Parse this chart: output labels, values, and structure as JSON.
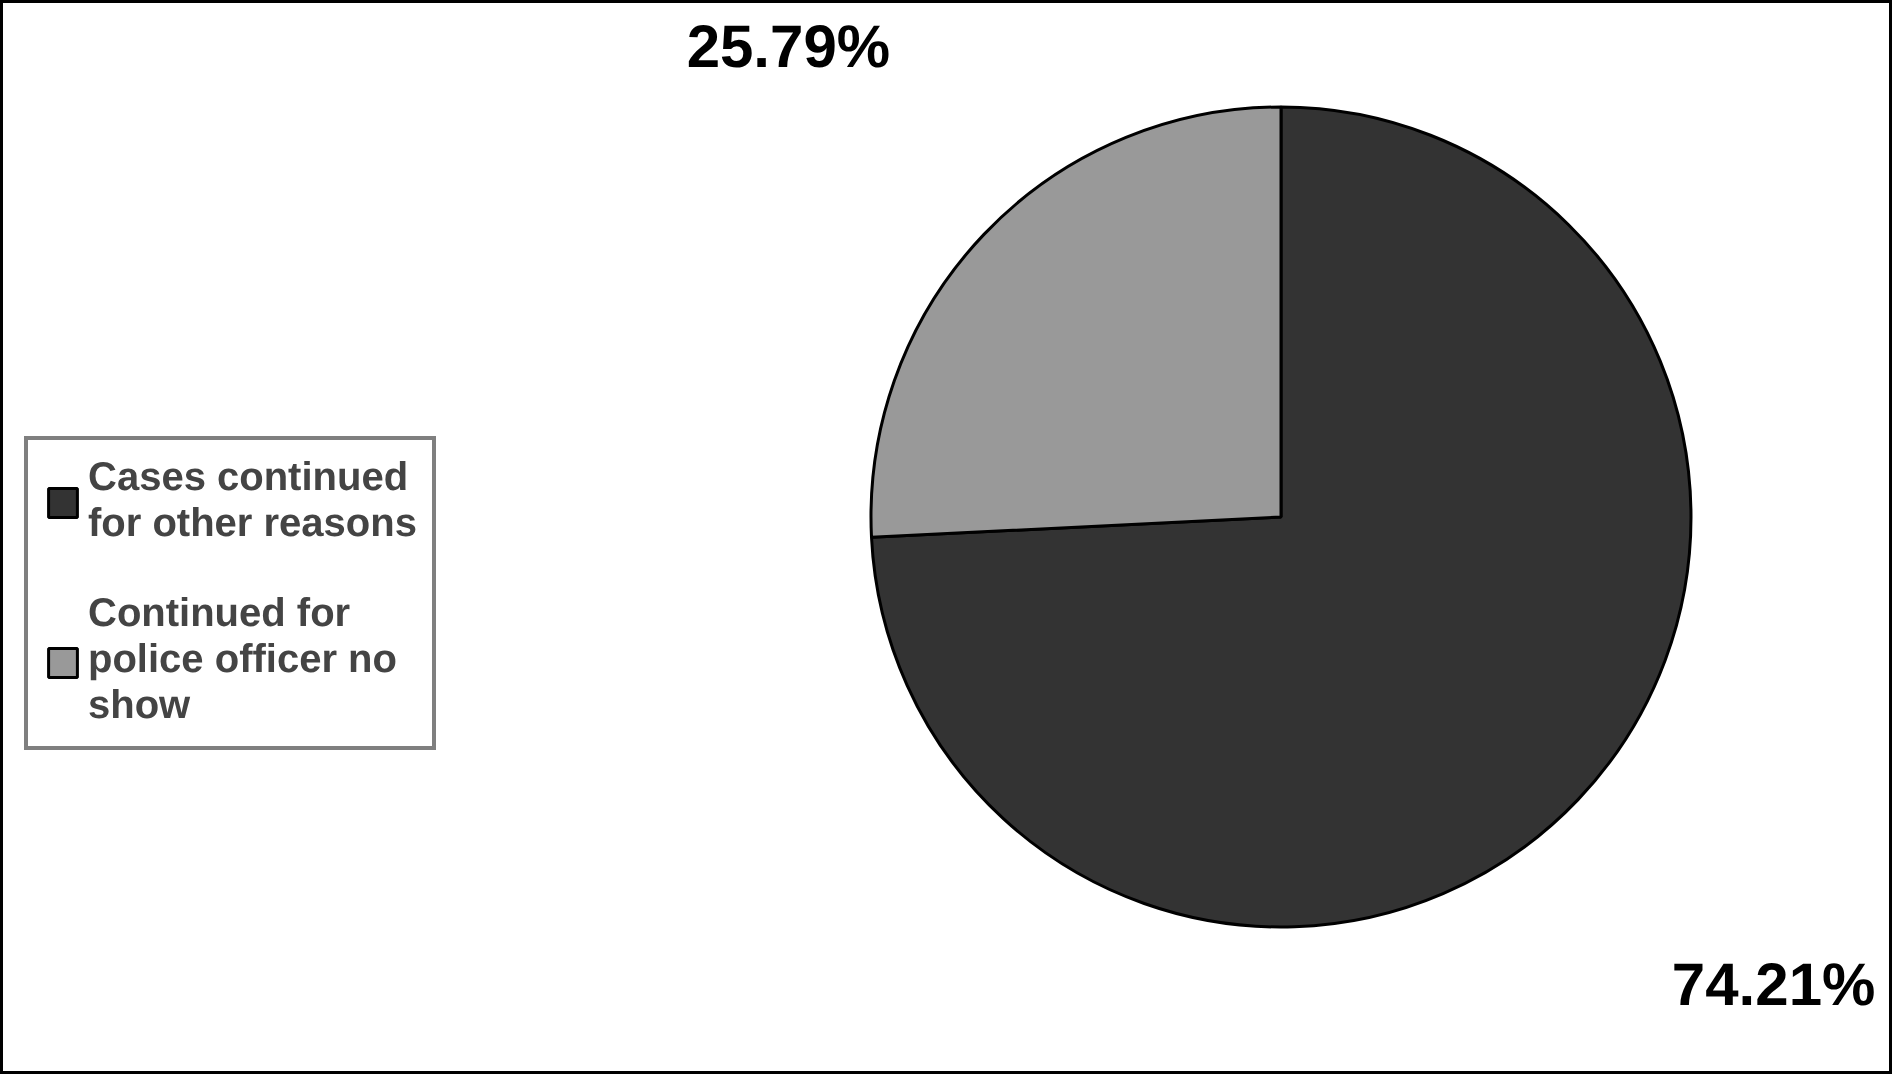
{
  "chart_data": {
    "type": "pie",
    "categories": [
      "Cases continued for other reasons",
      "Continued for police officer no show"
    ],
    "values": [
      74.21,
      25.79
    ],
    "colors": [
      "#333333",
      "#999999"
    ],
    "value_labels": [
      "74.21%",
      "25.79%"
    ],
    "legend": "left"
  }
}
